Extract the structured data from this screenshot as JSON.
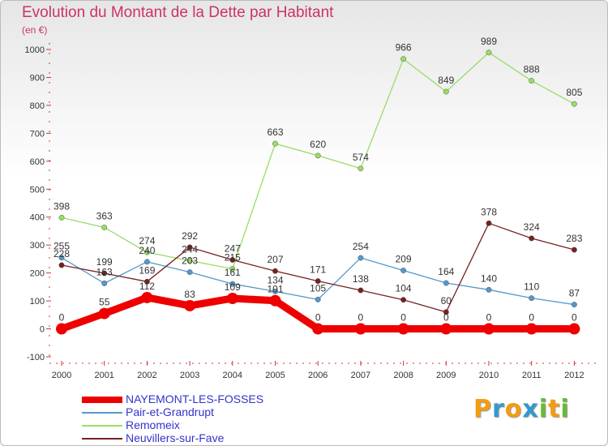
{
  "header": {
    "title": "Evolution du Montant de la Dette par Habitant",
    "subtitle": "(en €)"
  },
  "logo": {
    "letters": [
      "P",
      "r",
      "o",
      "x",
      "i",
      "t",
      "i"
    ],
    "colors": [
      "#f39c12",
      "#3399cc",
      "#f39c12",
      "#3399cc",
      "#66bb33",
      "#f39c12",
      "#66bb33"
    ]
  },
  "chart_data": {
    "type": "line",
    "title": "Evolution du Montant de la Dette par Habitant",
    "subtitle": "(en €)",
    "xlabel": "",
    "ylabel": "",
    "x": [
      "2000",
      "2001",
      "2002",
      "2003",
      "2004",
      "2005",
      "2006",
      "2007",
      "2008",
      "2009",
      "2010",
      "2011",
      "2012"
    ],
    "ylim": [
      -100,
      1000
    ],
    "yticks": [
      -100,
      0,
      100,
      200,
      300,
      400,
      500,
      600,
      700,
      800,
      900,
      1000
    ],
    "grid": false,
    "legend_position": "bottom-left",
    "series": [
      {
        "name": "NAYEMONT-LES-FOSSES",
        "color": "#ee0000",
        "thick": true,
        "values": [
          0,
          55,
          112,
          83,
          109,
          101,
          0,
          0,
          0,
          0,
          0,
          0,
          0
        ],
        "labels": [
          "0",
          "55",
          "112",
          "83",
          "109",
          "101",
          "0",
          "0",
          "0",
          "0",
          "0",
          "0",
          "0"
        ]
      },
      {
        "name": "Pair-et-Grandrupt",
        "color": "#5599cc",
        "thick": false,
        "values": [
          255,
          163,
          240,
          203,
          161,
          134,
          105,
          254,
          209,
          164,
          140,
          110,
          87
        ],
        "labels": [
          "255",
          "163",
          "240",
          "203",
          "161",
          "134",
          "105",
          "254",
          "209",
          "164",
          "140",
          "110",
          "87"
        ]
      },
      {
        "name": "Remomeix",
        "color": "#99dd66",
        "thick": false,
        "values": [
          398,
          363,
          274,
          244,
          215,
          663,
          620,
          574,
          966,
          849,
          989,
          888,
          805
        ],
        "labels": [
          "398",
          "363",
          "274",
          "244",
          "215",
          "663",
          "620",
          "574",
          "966",
          "849",
          "989",
          "888",
          "805"
        ]
      },
      {
        "name": "Neuvillers-sur-Fave",
        "color": "#772222",
        "thick": false,
        "values": [
          228,
          199,
          169,
          292,
          247,
          207,
          171,
          138,
          104,
          60,
          378,
          324,
          283
        ],
        "labels": [
          "228",
          "199",
          "169",
          "292",
          "247",
          "207",
          "171",
          "138",
          "104",
          "60",
          "378",
          "324",
          "283"
        ]
      }
    ]
  }
}
